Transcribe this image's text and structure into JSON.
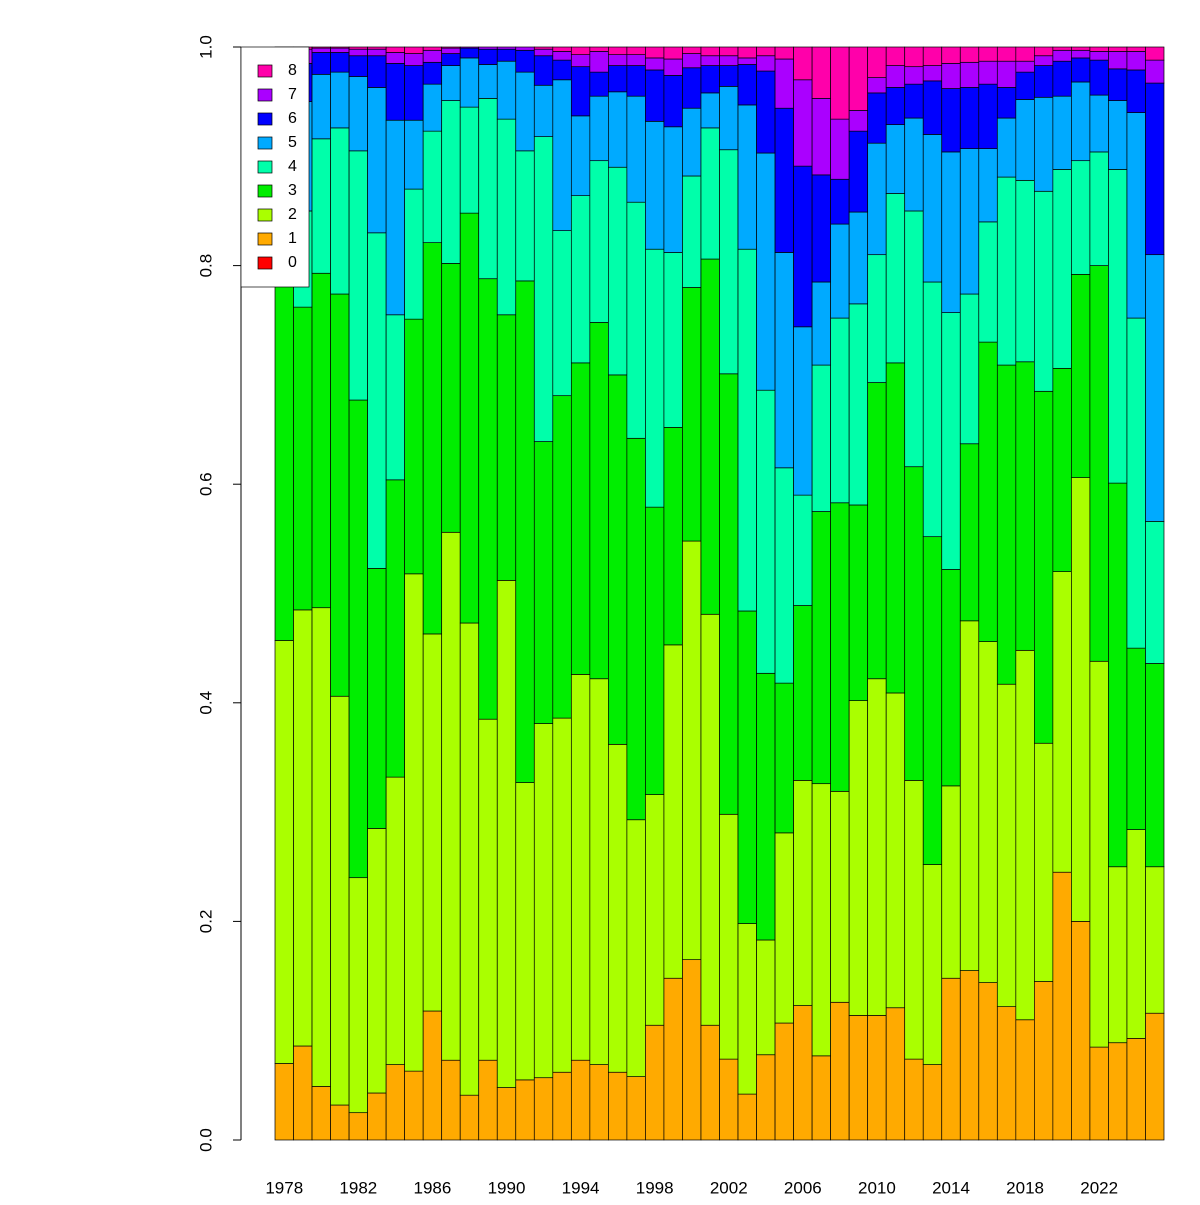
{
  "chart_data": {
    "type": "bar",
    "stacked": true,
    "categories": [
      "1978",
      null,
      null,
      null,
      "1982",
      null,
      null,
      null,
      "1986",
      null,
      null,
      null,
      "1990",
      null,
      null,
      null,
      "1994",
      null,
      null,
      null,
      "1998",
      null,
      null,
      null,
      "2002",
      null,
      null,
      null,
      "2006",
      null,
      null,
      null,
      "2010",
      null,
      null,
      null,
      "2014",
      null,
      null,
      null,
      "2018",
      null,
      null,
      null,
      "2022",
      null,
      null,
      null
    ],
    "series": [
      {
        "name": "0",
        "color": "#FF0000",
        "values": [
          0,
          0,
          0,
          0,
          0,
          0,
          0,
          0,
          0,
          0,
          0,
          0,
          0,
          0,
          0,
          0,
          0,
          0,
          0,
          0,
          0,
          0,
          0,
          0,
          0,
          0,
          0,
          0,
          0,
          0,
          0,
          0,
          0,
          0,
          0,
          0,
          0,
          0,
          0,
          0,
          0,
          0,
          0,
          0,
          0,
          0,
          0,
          0
        ]
      },
      {
        "name": "1",
        "color": "#FFAA00",
        "values": [
          0.07,
          0.086,
          0.049,
          0.032,
          0.025,
          0.043,
          0.069,
          0.063,
          0.118,
          0.073,
          0.041,
          0.073,
          0.048,
          0.055,
          0.057,
          0.062,
          0.073,
          0.069,
          0.062,
          0.058,
          0.105,
          0.148,
          0.165,
          0.105,
          0.074,
          0.042,
          0.078,
          0.107,
          0.123,
          0.077,
          0.126,
          0.114,
          0.114,
          0.121,
          0.074,
          0.069,
          0.148,
          0.155,
          0.144,
          0.122,
          0.11,
          0.145,
          0.245,
          0.2,
          0.085,
          0.089,
          0.093,
          0.116
        ]
      },
      {
        "name": "2",
        "color": "#AAFF00",
        "values": [
          0.387,
          0.399,
          0.438,
          0.374,
          0.215,
          0.242,
          0.263,
          0.455,
          0.345,
          0.483,
          0.432,
          0.312,
          0.464,
          0.272,
          0.324,
          0.324,
          0.353,
          0.353,
          0.3,
          0.235,
          0.211,
          0.305,
          0.383,
          0.376,
          0.224,
          0.156,
          0.105,
          0.174,
          0.206,
          0.249,
          0.193,
          0.288,
          0.308,
          0.288,
          0.255,
          0.183,
          0.176,
          0.32,
          0.312,
          0.295,
          0.338,
          0.218,
          0.275,
          0.406,
          0.353,
          0.161,
          0.191,
          0.134
        ]
      },
      {
        "name": "3",
        "color": "#00EE00",
        "values": [
          0.333,
          0.277,
          0.306,
          0.368,
          0.437,
          0.238,
          0.272,
          0.233,
          0.358,
          0.246,
          0.375,
          0.403,
          0.243,
          0.459,
          0.258,
          0.295,
          0.285,
          0.326,
          0.338,
          0.349,
          0.263,
          0.199,
          0.232,
          0.325,
          0.403,
          0.286,
          0.244,
          0.137,
          0.16,
          0.249,
          0.264,
          0.179,
          0.271,
          0.302,
          0.287,
          0.3,
          0.198,
          0.162,
          0.274,
          0.292,
          0.264,
          0.322,
          0.186,
          0.186,
          0.362,
          0.351,
          0.166,
          0.186
        ]
      },
      {
        "name": "4",
        "color": "#00FFAA",
        "values": [
          0.11,
          0.088,
          0.123,
          0.152,
          0.228,
          0.307,
          0.151,
          0.119,
          0.102,
          0.149,
          0.097,
          0.165,
          0.179,
          0.119,
          0.279,
          0.151,
          0.153,
          0.148,
          0.19,
          0.216,
          0.236,
          0.16,
          0.102,
          0.12,
          0.205,
          0.331,
          0.259,
          0.197,
          0.101,
          0.134,
          0.169,
          0.184,
          0.117,
          0.155,
          0.234,
          0.233,
          0.235,
          0.137,
          0.11,
          0.172,
          0.166,
          0.183,
          0.182,
          0.104,
          0.104,
          0.287,
          0.302,
          0.13
        ]
      },
      {
        "name": "5",
        "color": "#00AAFF",
        "values": [
          0.07,
          0.1,
          0.059,
          0.051,
          0.068,
          0.133,
          0.178,
          0.063,
          0.043,
          0.032,
          0.045,
          0.031,
          0.053,
          0.072,
          0.047,
          0.138,
          0.073,
          0.059,
          0.069,
          0.097,
          0.117,
          0.115,
          0.062,
          0.032,
          0.058,
          0.132,
          0.217,
          0.197,
          0.154,
          0.076,
          0.086,
          0.084,
          0.102,
          0.063,
          0.085,
          0.135,
          0.147,
          0.133,
          0.067,
          0.054,
          0.074,
          0.086,
          0.067,
          0.072,
          0.052,
          0.063,
          0.188,
          0.244
        ]
      },
      {
        "name": "6",
        "color": "#0000FF",
        "values": [
          0.02,
          0.035,
          0.02,
          0.018,
          0.019,
          0.029,
          0.052,
          0.05,
          0.02,
          0.011,
          0.009,
          0.014,
          0.011,
          0.02,
          0.027,
          0.018,
          0.045,
          0.022,
          0.024,
          0.028,
          0.047,
          0.047,
          0.037,
          0.025,
          0.019,
          0.037,
          0.075,
          0.132,
          0.147,
          0.098,
          0.041,
          0.074,
          0.046,
          0.034,
          0.031,
          0.049,
          0.058,
          0.056,
          0.059,
          0.028,
          0.025,
          0.029,
          0.032,
          0.022,
          0.032,
          0.029,
          0.039,
          0.157
        ]
      },
      {
        "name": "7",
        "color": "#AA00FF",
        "values": [
          0.01,
          0.013,
          0.004,
          0.004,
          0.006,
          0.006,
          0.01,
          0.011,
          0.011,
          0.005,
          0.001,
          0.002,
          0.002,
          0.003,
          0.006,
          0.008,
          0.011,
          0.019,
          0.01,
          0.01,
          0.011,
          0.015,
          0.013,
          0.009,
          0.009,
          0.006,
          0.014,
          0.045,
          0.079,
          0.07,
          0.055,
          0.019,
          0.014,
          0.02,
          0.016,
          0.014,
          0.023,
          0.023,
          0.021,
          0.024,
          0.01,
          0.009,
          0.01,
          0.007,
          0.008,
          0.016,
          0.017,
          0.021
        ]
      },
      {
        "name": "8",
        "color": "#FF00AA",
        "values": [
          0,
          0.002,
          0.001,
          0.001,
          0.002,
          0.002,
          0.005,
          0.006,
          0.003,
          0.001,
          0,
          0,
          0,
          0,
          0.002,
          0.004,
          0.007,
          0.004,
          0.007,
          0.007,
          0.01,
          0.011,
          0.006,
          0.008,
          0.008,
          0.01,
          0.008,
          0.011,
          0.03,
          0.047,
          0.066,
          0.058,
          0.028,
          0.017,
          0.018,
          0.017,
          0.015,
          0.014,
          0.013,
          0.013,
          0.013,
          0.008,
          0.003,
          0.003,
          0.004,
          0.004,
          0.004,
          0.012
        ]
      }
    ],
    "ylim": [
      0,
      1
    ],
    "yticks": [
      {
        "value": 0,
        "label": "0.0"
      },
      0.2,
      0.4,
      0.6,
      0.8,
      {
        "value": 1,
        "label": "1.0"
      }
    ],
    "legend": "top-left"
  }
}
